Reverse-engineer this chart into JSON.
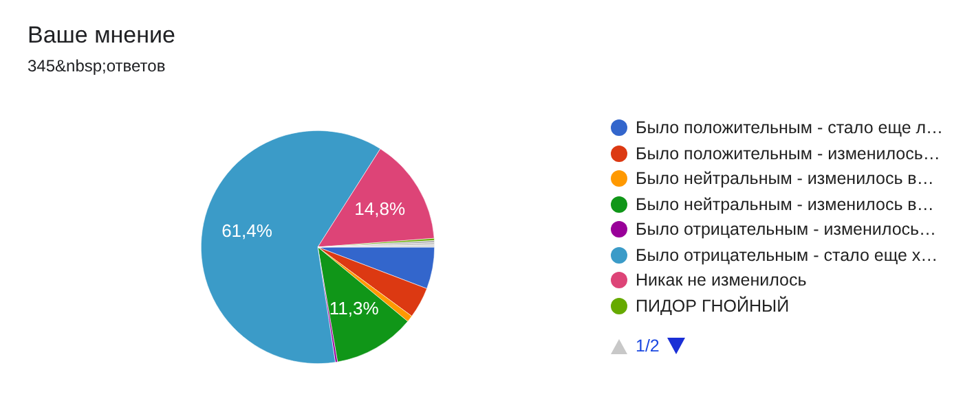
{
  "chart_data": {
    "type": "pie",
    "title": "Ваше мнение",
    "subtitle": "345&nbsp;ответов",
    "categories": [
      "Было положительным - стало еще л…",
      "Было положительным - изменилось…",
      "Было нейтральным - изменилось в…",
      "Было нейтральным - изменилось в…",
      "Было отрицательным - изменилось…",
      "Было отрицательным - стало еще х…",
      "Никак не изменилось",
      "ПИДОР ГНОЙНЫЙ",
      null,
      null,
      null
    ],
    "values": [
      5.8,
      4.3,
      0.9,
      11.3,
      0.3,
      61.4,
      14.8,
      0.3,
      0.3,
      0.3,
      0.3
    ],
    "colors": [
      "#3366cc",
      "#dc3912",
      "#ff9900",
      "#109618",
      "#990099",
      "#3b9bc8",
      "#dd4477",
      "#66aa00",
      "#b0b0b0",
      "#c4c4c4",
      "#d6d6d6"
    ],
    "value_labels": [
      null,
      null,
      null,
      "11,3%",
      null,
      "61,4%",
      "14,8%",
      null,
      null,
      null,
      null
    ],
    "legend": "right",
    "annotations": [
      "1/2"
    ]
  }
}
